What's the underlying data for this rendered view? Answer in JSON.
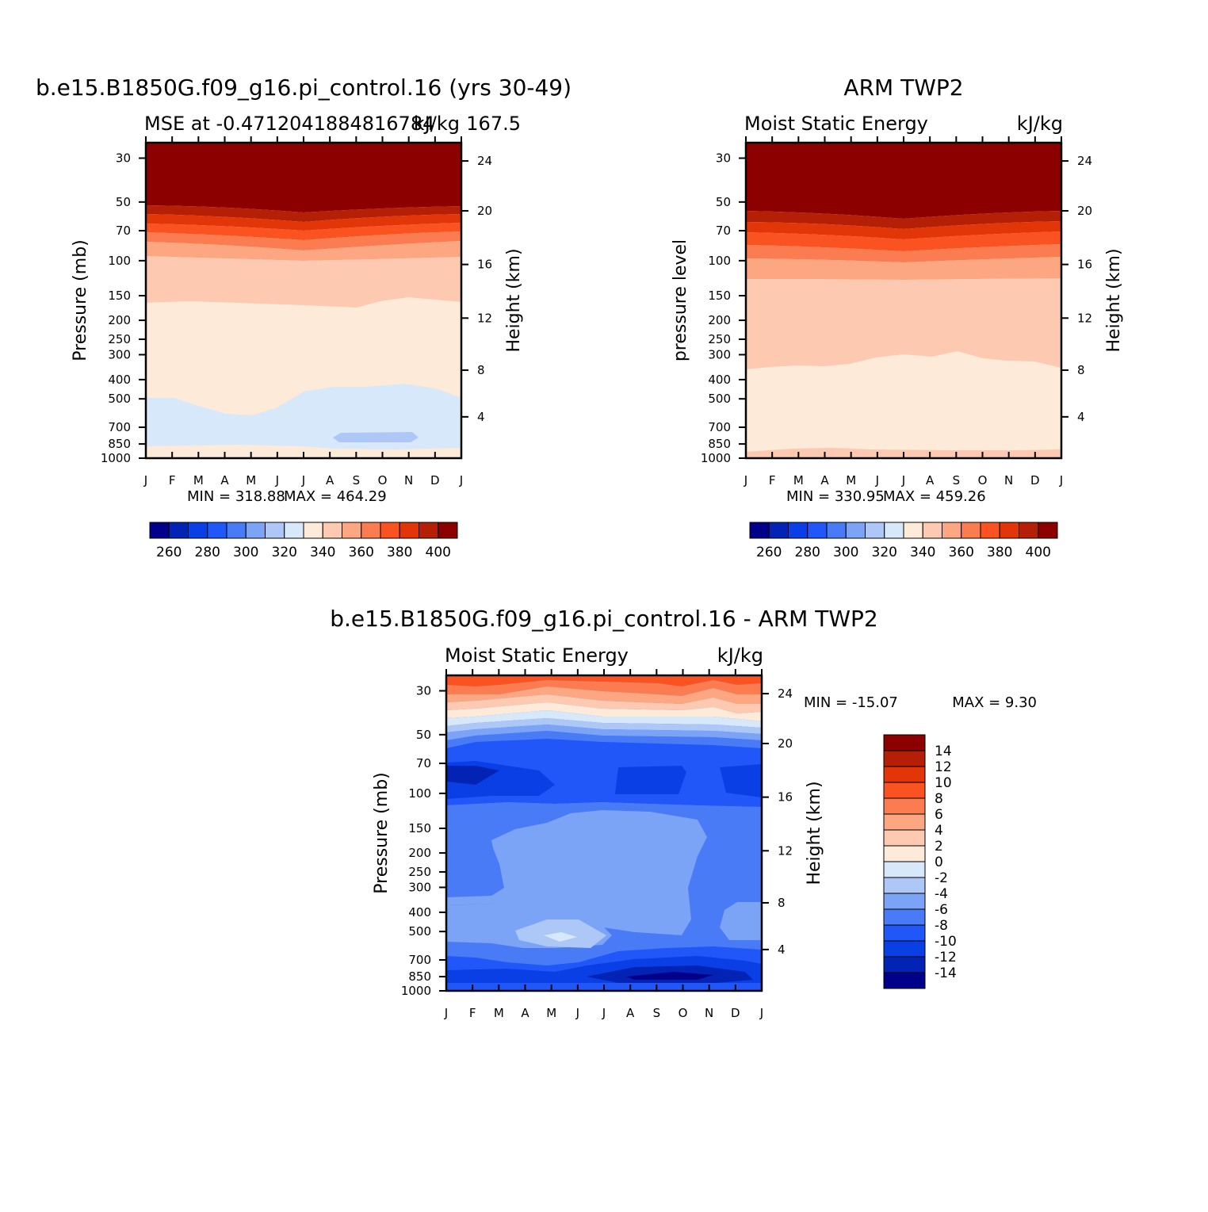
{
  "colors": {
    "abs_scale": [
      "#00008b",
      "#0323b5",
      "#0b3fe6",
      "#2156f8",
      "#4a7bf7",
      "#7ba3f6",
      "#adc8f7",
      "#d7e8fb",
      "#feead9",
      "#fdc9b0",
      "#fca682",
      "#fc7c52",
      "#fa5321",
      "#e23508",
      "#b51f05",
      "#8c0000"
    ],
    "diff_scale": [
      "#00008b",
      "#0323b5",
      "#0b3fe6",
      "#2156f8",
      "#4a7bf7",
      "#7ba3f6",
      "#adc8f7",
      "#d7e8fb",
      "#feead9",
      "#fdc9b0",
      "#fca682",
      "#fc7c52",
      "#fa5321",
      "#e23508",
      "#b51f05",
      "#8c0000"
    ]
  },
  "chart_data": [
    {
      "type": "heatmap",
      "id": "model",
      "title": "b.e15.B1850G.f09_g16.pi_control.16 (yrs 30-49)",
      "subtitle_left": "MSE at -0.4712041884816784",
      "subtitle_right": "kJ/kg",
      "subtitle_extra": "167.5",
      "ylabel": "Pressure (mb)",
      "ylabel_right": "Height (km)",
      "x_ticks": [
        "J",
        "F",
        "M",
        "A",
        "M",
        "J",
        "J",
        "A",
        "S",
        "O",
        "N",
        "D",
        "J"
      ],
      "y_ticks": [
        "30",
        "50",
        "70",
        "100",
        "150",
        "200",
        "250",
        "300",
        "400",
        "500",
        "700",
        "850",
        "1000"
      ],
      "y_ticks_right": [
        "24",
        "20",
        "16",
        "12",
        "8",
        "4"
      ],
      "min_label": "MIN = 318.88",
      "max_label": "MAX = 464.29",
      "colorbar_labels": [
        "260",
        "280",
        "300",
        "320",
        "340",
        "360",
        "380",
        "400"
      ],
      "min": 318.88,
      "max": 464.29
    },
    {
      "type": "heatmap",
      "id": "obs",
      "title": "ARM TWP2",
      "subtitle_left": "Moist Static Energy",
      "subtitle_right": "kJ/kg",
      "ylabel": "pressure level",
      "ylabel_right": "Height (km)",
      "x_ticks": [
        "J",
        "F",
        "M",
        "A",
        "M",
        "J",
        "J",
        "A",
        "S",
        "O",
        "N",
        "D",
        "J"
      ],
      "y_ticks": [
        "30",
        "50",
        "70",
        "100",
        "150",
        "200",
        "250",
        "300",
        "400",
        "500",
        "700",
        "850",
        "1000"
      ],
      "y_ticks_right": [
        "24",
        "20",
        "16",
        "12",
        "8",
        "4"
      ],
      "min_label": "MIN = 330.95",
      "max_label": "MAX = 459.26",
      "colorbar_labels": [
        "260",
        "280",
        "300",
        "320",
        "340",
        "360",
        "380",
        "400"
      ],
      "min": 330.95,
      "max": 459.26
    },
    {
      "type": "heatmap",
      "id": "diff",
      "title": "b.e15.B1850G.f09_g16.pi_control.16 - ARM TWP2",
      "subtitle_left": "Moist Static Energy",
      "subtitle_right": "kJ/kg",
      "ylabel": "Pressure (mb)",
      "ylabel_right": "Height (km)",
      "x_ticks": [
        "J",
        "F",
        "M",
        "A",
        "M",
        "J",
        "J",
        "A",
        "S",
        "O",
        "N",
        "D",
        "J"
      ],
      "y_ticks": [
        "30",
        "50",
        "70",
        "100",
        "150",
        "200",
        "250",
        "300",
        "400",
        "500",
        "700",
        "850",
        "1000"
      ],
      "y_ticks_right": [
        "24",
        "20",
        "16",
        "12",
        "8",
        "4"
      ],
      "min_label": "MIN = -15.07",
      "max_label": "MAX = 9.30",
      "colorbar_labels": [
        "14",
        "12",
        "10",
        "8",
        "6",
        "4",
        "2",
        "0",
        "-2",
        "-4",
        "-6",
        "-8",
        "-10",
        "-12",
        "-14"
      ],
      "min": -15.07,
      "max": 9.3
    }
  ]
}
